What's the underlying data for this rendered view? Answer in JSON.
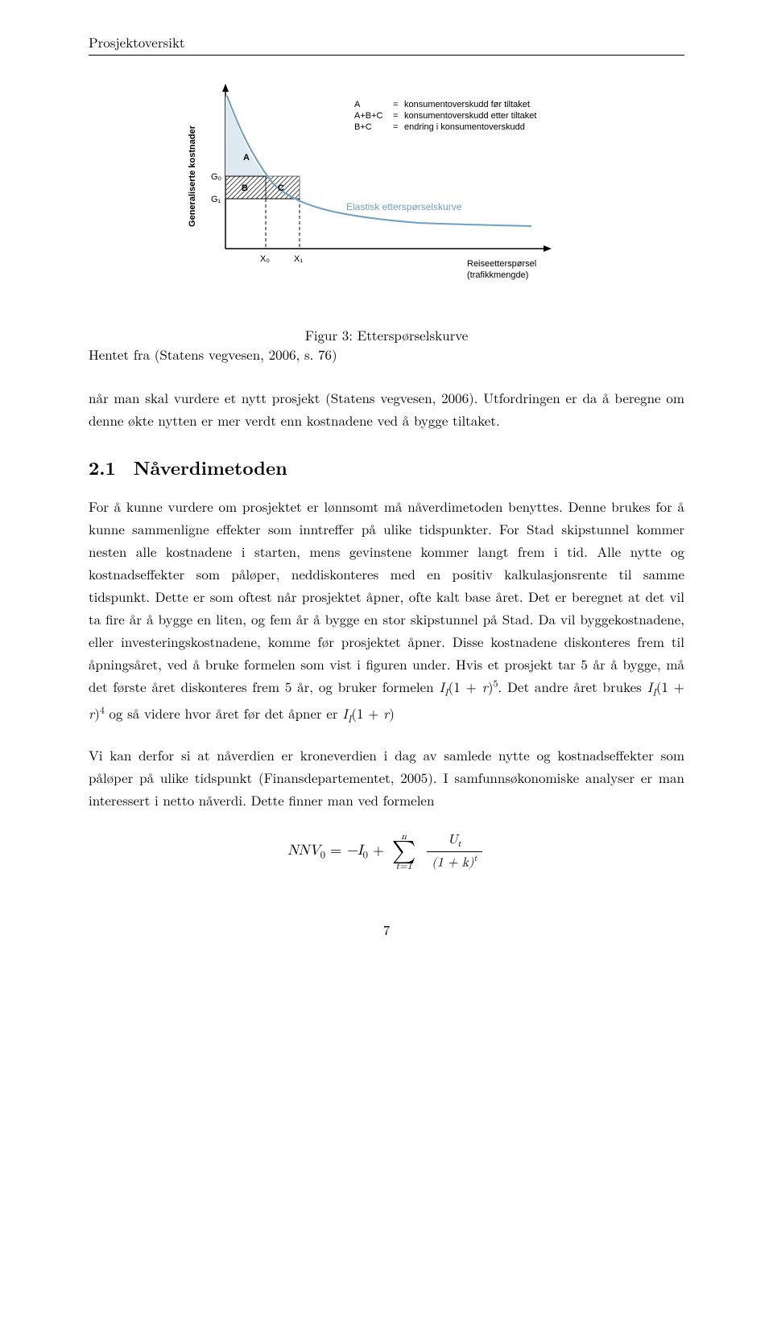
{
  "header": {
    "running": "Prosjektoversikt"
  },
  "figure": {
    "caption": "Figur 3: Etterspørselskurve",
    "source": "Hentet fra (Statens vegvesen, 2006, s. 76)",
    "chart": {
      "type": "line",
      "axes_color": "#000000",
      "curve_color": "#6fa0c2",
      "hatch_color": "#4a4a4a",
      "background": "#ffffff",
      "y_axis_label": "Generaliserte kostnader",
      "x_axis_label_line1": "Reiseetterspørsel",
      "x_axis_label_line2": "(trafikkmengde)",
      "curve_label": "Elastisk etterspørselskurve",
      "y_ticks": [
        "G₀",
        "G₁"
      ],
      "x_ticks": [
        "X₀",
        "X₁"
      ],
      "region_labels": {
        "A": "A",
        "B": "B",
        "C": "C"
      },
      "legend": [
        {
          "key": "A",
          "eq": "=",
          "desc": "konsumentoverskudd før tiltaket"
        },
        {
          "key": "A+B+C",
          "eq": "=",
          "desc": "konsumentoverskudd etter tiltaket"
        },
        {
          "key": "B+C",
          "eq": "=",
          "desc": "endring i konsumentoverskudd"
        }
      ],
      "curve_points": [
        {
          "x": 62,
          "y": 20
        },
        {
          "x": 75,
          "y": 55
        },
        {
          "x": 92,
          "y": 95
        },
        {
          "x": 120,
          "y": 130
        },
        {
          "x": 160,
          "y": 154
        },
        {
          "x": 220,
          "y": 168
        },
        {
          "x": 300,
          "y": 176
        },
        {
          "x": 420,
          "y": 181
        }
      ],
      "G0_y": 120,
      "G1_y": 148,
      "X0_x": 110,
      "X1_x": 152
    }
  },
  "intro_para": "når man skal vurdere et nytt prosjekt (Statens vegvesen, 2006). Utfordringen er da å beregne om denne økte nytten er mer verdt enn kostnadene ved å bygge tiltaket.",
  "section": {
    "number": "2.1",
    "title": "Nåverdimetoden"
  },
  "body1_html": "For å kunne vurdere om prosjektet er lønnsomt må nåverdimetoden benyttes. Denne brukes for å kunne sammenligne effekter som inntreffer på ulike tidspunkter. For Stad skipstunnel kommer nesten alle kostnadene i starten, mens gevinstene kommer langt frem i tid. Alle nytte og kostnadseffekter som påløper, neddiskonteres med en positiv kalkulasjonsrente til samme tidspunkt. Dette er som oftest når prosjektet åpner, ofte kalt base året. Det er beregnet at det vil ta fire år å bygge en liten, og fem år å bygge en stor skipstunnel på Stad. Da vil byggekostnadene, eller investeringskostnadene, komme før prosjektet åpner. Disse kostnadene diskonteres frem til åpningsåret, ved å bruke formelen som vist i figuren under. Hvis et prosjekt tar 5 år å bygge, må det første året diskonteres frem 5 år, og bruker formelen <i>I<sub>I</sub></i>(1 + <i>r</i>)<sup>5</sup>. Det andre året brukes <i>I<sub>I</sub></i>(1 + <i>r</i>)<sup>4</sup> og så videre hvor året før det åpner er <i>I<sub>I</sub></i>(1 + <i>r</i>)",
  "body2": "Vi kan derfor si at nåverdien er kroneverdien i dag av samlede nytte og kostnadseffekter som påløper på ulike tidspunkt (Finansdepartementet, 2005). I samfunnsøkonomiske analyser er man interessert i netto nåverdi. Dette finner man ved formelen",
  "equation": {
    "lhs": "NNV",
    "lhs_sub": "0",
    "rhs_first": "−I",
    "rhs_first_sub": "0",
    "sum_upper": "n",
    "sum_lower": "t=1",
    "frac_num": "U<sub>t</sub>",
    "frac_den": "(1 + k)<sup>t</sup>"
  },
  "page_number": "7"
}
